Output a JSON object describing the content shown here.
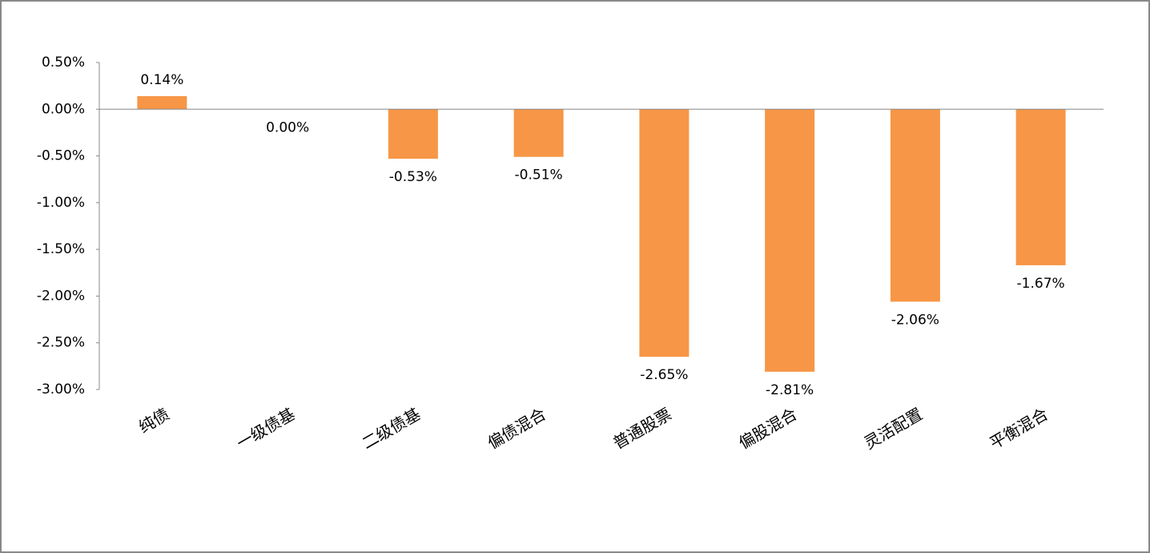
{
  "chart_data": {
    "type": "bar",
    "categories": [
      "纯债",
      "一级债基",
      "二级债基",
      "偏债混合",
      "普通股票",
      "偏股混合",
      "灵活配置",
      "平衡混合"
    ],
    "values": [
      0.14,
      0.0,
      -0.53,
      -0.51,
      -2.65,
      -2.81,
      -2.06,
      -1.67
    ],
    "value_labels": [
      "0.14%",
      "0.00%",
      "-0.53%",
      "-0.51%",
      "-2.65%",
      "-2.81%",
      "-2.06%",
      "-1.67%"
    ],
    "color": "#f79646",
    "ylim": [
      -3.0,
      0.5
    ],
    "yticks": [
      {
        "value": 0.5,
        "label": "0.50%"
      },
      {
        "value": 0.0,
        "label": "0.00%"
      },
      {
        "value": -0.5,
        "label": "-0.50%"
      },
      {
        "value": -1.0,
        "label": "-1.00%"
      },
      {
        "value": -1.5,
        "label": "-1.50%"
      },
      {
        "value": -2.0,
        "label": "-2.00%"
      },
      {
        "value": -2.5,
        "label": "-2.50%"
      },
      {
        "value": -3.0,
        "label": "-3.00%"
      }
    ],
    "grid": false
  }
}
